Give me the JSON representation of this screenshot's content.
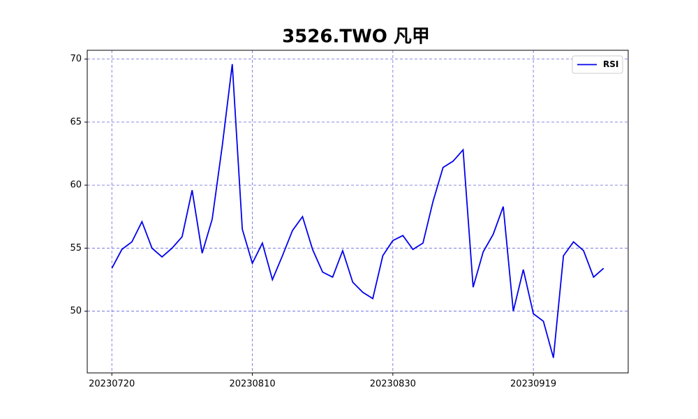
{
  "chart_data": {
    "type": "line",
    "title": "3526.TWO 凡甲",
    "categories": [
      "20230720",
      null,
      null,
      null,
      null,
      null,
      null,
      null,
      null,
      null,
      null,
      null,
      null,
      null,
      "20230810",
      null,
      null,
      null,
      null,
      null,
      null,
      null,
      null,
      null,
      null,
      null,
      null,
      null,
      "20230830",
      null,
      null,
      null,
      null,
      null,
      null,
      null,
      null,
      null,
      null,
      null,
      null,
      null,
      "20230919",
      null,
      null,
      null,
      null,
      null,
      null,
      null
    ],
    "series": [
      {
        "name": "RSI",
        "color": "#0000ee",
        "values": [
          53.4,
          54.9,
          55.5,
          57.1,
          55.0,
          54.3,
          55.0,
          55.9,
          59.6,
          54.6,
          57.3,
          63.1,
          69.6,
          56.5,
          53.8,
          55.4,
          52.5,
          54.4,
          56.4,
          57.5,
          54.9,
          53.1,
          52.7,
          54.8,
          52.3,
          51.5,
          51.0,
          54.4,
          55.6,
          56.0,
          54.9,
          55.4,
          58.7,
          61.4,
          61.9,
          62.8,
          51.9,
          54.7,
          56.1,
          58.3,
          50.0,
          53.3,
          49.8,
          49.2,
          46.3,
          54.4,
          55.5,
          54.8,
          52.7,
          53.4
        ]
      }
    ],
    "ylim": [
      45.1,
      70.7
    ],
    "yticks": [
      50,
      55,
      60,
      65,
      70
    ],
    "grid": true,
    "legend": "upper right"
  }
}
